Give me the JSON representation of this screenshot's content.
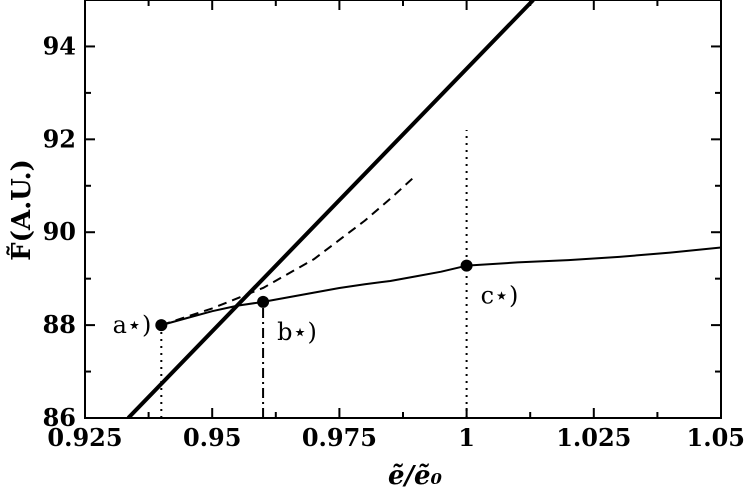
{
  "chart_data": {
    "type": "line",
    "xlabel": "ẽ/ẽ₀",
    "ylabel": "F̃(A.U.)",
    "xlim": [
      0.925,
      1.05
    ],
    "ylim": [
      86,
      95
    ],
    "x_ticks": [
      {
        "value": 0.925,
        "label": "0.925"
      },
      {
        "value": 0.95,
        "label": "0.95"
      },
      {
        "value": 0.975,
        "label": "0.975"
      },
      {
        "value": 1.0,
        "label": "1"
      },
      {
        "value": 1.025,
        "label": "1.025"
      },
      {
        "value": 1.05,
        "label": "1.05"
      }
    ],
    "y_ticks": [
      {
        "value": 86,
        "label": "86"
      },
      {
        "value": 88,
        "label": "88"
      },
      {
        "value": 90,
        "label": "90"
      },
      {
        "value": 92,
        "label": "92"
      },
      {
        "value": 94,
        "label": "94"
      }
    ],
    "grid": false,
    "series": [
      {
        "style": "thick-solid",
        "x": [
          0.9335,
          1.0131
        ],
        "y": [
          86.0,
          95.0
        ]
      },
      {
        "style": "thin-solid",
        "x": [
          0.94,
          0.945,
          0.95,
          0.955,
          0.96,
          0.965,
          0.97,
          0.975,
          0.98,
          0.985,
          0.99,
          0.995,
          1.0,
          1.01,
          1.02,
          1.03,
          1.04,
          1.05
        ],
        "y": [
          88.0,
          88.15,
          88.3,
          88.42,
          88.5,
          88.6,
          88.7,
          88.8,
          88.88,
          88.95,
          89.05,
          89.15,
          89.28,
          89.35,
          89.4,
          89.47,
          89.56,
          89.67
        ]
      },
      {
        "style": "dashed",
        "x": [
          0.94,
          0.95,
          0.96,
          0.97,
          0.98,
          0.985,
          0.99
        ],
        "y": [
          88.0,
          88.36,
          88.8,
          89.42,
          90.25,
          90.72,
          91.22
        ]
      }
    ],
    "markers": [
      {
        "x": 0.94,
        "y": 88.0,
        "label": "a⋆)",
        "label_side": "left"
      },
      {
        "x": 0.96,
        "y": 88.5,
        "label": "b⋆)",
        "label_side": "below-right"
      },
      {
        "x": 1.0,
        "y": 89.28,
        "label": "c⋆)",
        "label_side": "below-right"
      }
    ],
    "drop_lines": [
      {
        "x": 0.94,
        "y_from": 86,
        "y_to": 88.0,
        "style": "dotted"
      },
      {
        "x": 0.96,
        "y_from": 86,
        "y_to": 88.5,
        "style": "dash-dot"
      },
      {
        "x": 1.0,
        "y_from": 86,
        "y_to": 92.2,
        "style": "dotted"
      }
    ]
  }
}
